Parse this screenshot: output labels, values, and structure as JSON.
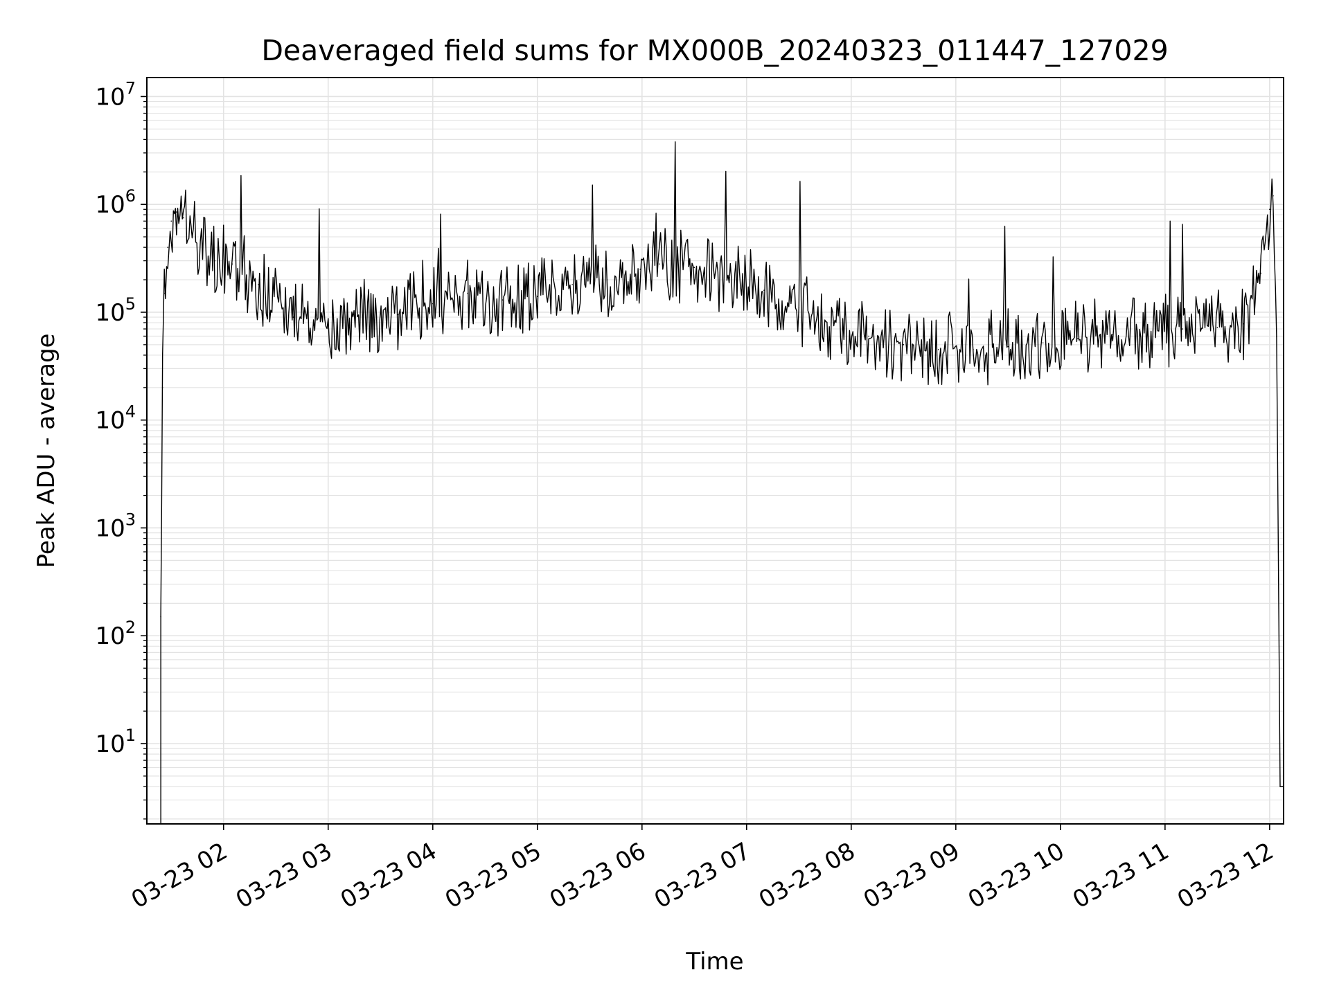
{
  "chart_data": {
    "type": "line",
    "title": "Deaveraged field sums for MX000B_20240323_011447_127029",
    "xlabel": "Time",
    "ylabel": "Peak ADU - average",
    "yscale": "log",
    "ylim": [
      1.8,
      15000000
    ],
    "xlim": [
      "2024-03-23 01:16",
      "2024-03-23 12:08"
    ],
    "grid": true,
    "line_color": "#000000",
    "grid_color": "#e3e3e3",
    "x_ticks": [
      {
        "value": "2024-03-23 02:00",
        "label": "03-23 02"
      },
      {
        "value": "2024-03-23 03:00",
        "label": "03-23 03"
      },
      {
        "value": "2024-03-23 04:00",
        "label": "03-23 04"
      },
      {
        "value": "2024-03-23 05:00",
        "label": "03-23 05"
      },
      {
        "value": "2024-03-23 06:00",
        "label": "03-23 06"
      },
      {
        "value": "2024-03-23 07:00",
        "label": "03-23 07"
      },
      {
        "value": "2024-03-23 08:00",
        "label": "03-23 08"
      },
      {
        "value": "2024-03-23 09:00",
        "label": "03-23 09"
      },
      {
        "value": "2024-03-23 10:00",
        "label": "03-23 10"
      },
      {
        "value": "2024-03-23 11:00",
        "label": "03-23 11"
      },
      {
        "value": "2024-03-23 12:00",
        "label": "03-23 12"
      }
    ],
    "y_ticks": [
      {
        "value": 10,
        "base": "10",
        "exp": "1"
      },
      {
        "value": 100,
        "base": "10",
        "exp": "2"
      },
      {
        "value": 1000,
        "base": "10",
        "exp": "3"
      },
      {
        "value": 10000,
        "base": "10",
        "exp": "4"
      },
      {
        "value": 100000,
        "base": "10",
        "exp": "5"
      },
      {
        "value": 1000000,
        "base": "10",
        "exp": "6"
      },
      {
        "value": 10000000,
        "base": "10",
        "exp": "7"
      }
    ],
    "series": [
      {
        "x": [
          "2024-03-23 01:24",
          "2024-03-23 01:25",
          "2024-03-23 01:26",
          "2024-03-23 01:28",
          "2024-03-23 01:30",
          "2024-03-23 01:33",
          "2024-03-23 01:37",
          "2024-03-23 01:42",
          "2024-03-23 01:48",
          "2024-03-23 01:55",
          "2024-03-23 02:05",
          "2024-03-23 02:20",
          "2024-03-23 02:40",
          "2024-03-23 03:00",
          "2024-03-23 03:20",
          "2024-03-23 03:40",
          "2024-03-23 04:00",
          "2024-03-23 04:20",
          "2024-03-23 04:40",
          "2024-03-23 05:00",
          "2024-03-23 05:20",
          "2024-03-23 05:40",
          "2024-03-23 05:59",
          "2024-03-23 06:10",
          "2024-03-23 06:30",
          "2024-03-23 06:50",
          "2024-03-23 07:10",
          "2024-03-23 07:30",
          "2024-03-23 07:50",
          "2024-03-23 08:10",
          "2024-03-23 08:30",
          "2024-03-23 08:50",
          "2024-03-23 09:10",
          "2024-03-23 09:30",
          "2024-03-23 09:50",
          "2024-03-23 10:10",
          "2024-03-23 10:30",
          "2024-03-23 10:50",
          "2024-03-23 11:10",
          "2024-03-23 11:30",
          "2024-03-23 11:45",
          "2024-03-23 11:55",
          "2024-03-23 12:00",
          "2024-03-23 12:02",
          "2024-03-23 12:04",
          "2024-03-23 12:05",
          "2024-03-23 12:06",
          "2024-03-23 12:08"
        ],
        "y": [
          150,
          20000,
          150000,
          400000,
          700000,
          850000,
          750000,
          500000,
          400000,
          300000,
          280000,
          180000,
          90000,
          80000,
          90000,
          95000,
          120000,
          150000,
          130000,
          140000,
          180000,
          200000,
          250000,
          280000,
          260000,
          210000,
          160000,
          110000,
          75000,
          60000,
          50000,
          45000,
          45000,
          48000,
          52000,
          57000,
          62000,
          66000,
          70000,
          72000,
          78000,
          230000,
          900000,
          1200000,
          60000,
          600,
          4,
          4
        ]
      }
    ]
  }
}
